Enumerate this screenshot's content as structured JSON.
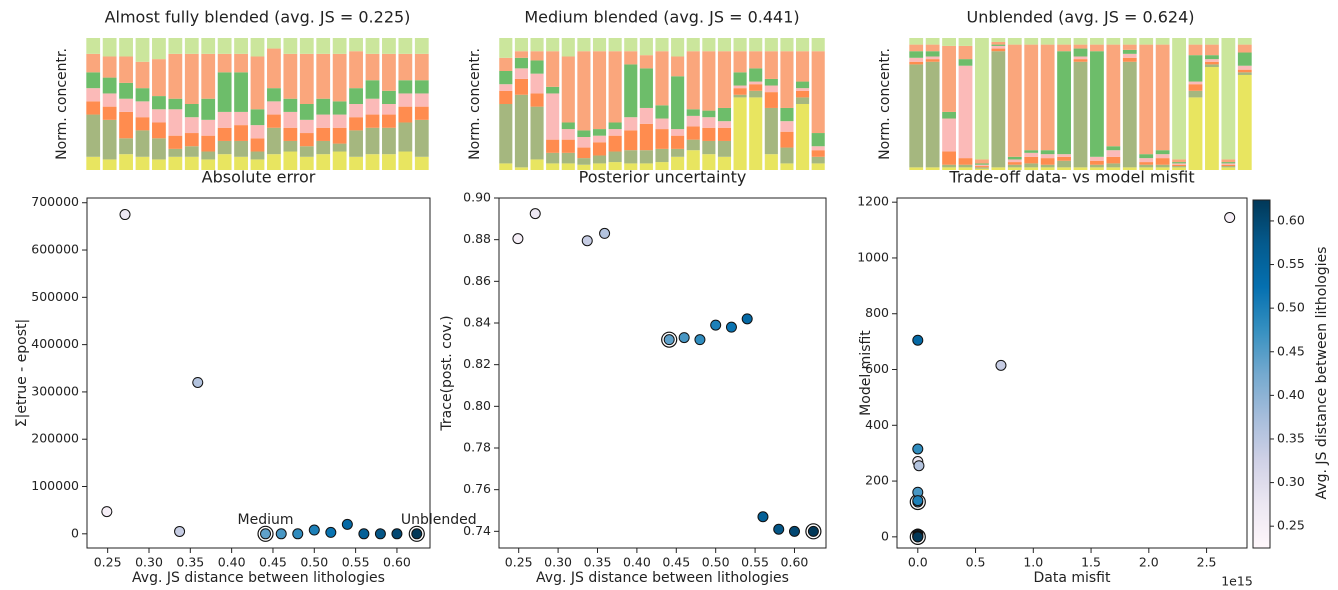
{
  "chart_data": [
    {
      "type": "bar",
      "stacked": true,
      "title": "Almost fully blended (avg. JS = 0.225)",
      "ylabel": "Norm. concentr.",
      "ylim": [
        0,
        1
      ],
      "series": [
        {
          "color": "#e8e560",
          "values": [
            0.1,
            0.08,
            0.12,
            0.1,
            0.08,
            0.1,
            0.1,
            0.08,
            0.12,
            0.1,
            0.08,
            0.12,
            0.14,
            0.1,
            0.12,
            0.14,
            0.1,
            0.12,
            0.12,
            0.14,
            0.1
          ]
        },
        {
          "color": "#a5b77f",
          "values": [
            0.32,
            0.3,
            0.12,
            0.2,
            0.16,
            0.06,
            0.08,
            0.06,
            0.1,
            0.12,
            0.06,
            0.2,
            0.08,
            0.08,
            0.1,
            0.06,
            0.2,
            0.2,
            0.2,
            0.22,
            0.28
          ]
        },
        {
          "color": "#ff8c4f",
          "values": [
            0.1,
            0.1,
            0.2,
            0.1,
            0.12,
            0.1,
            0.1,
            0.12,
            0.1,
            0.12,
            0.1,
            0.1,
            0.1,
            0.1,
            0.1,
            0.12,
            0.1,
            0.1,
            0.1,
            0.12,
            0.1
          ]
        },
        {
          "color": "#fbbab8",
          "values": [
            0.1,
            0.1,
            0.1,
            0.12,
            0.1,
            0.2,
            0.12,
            0.12,
            0.12,
            0.1,
            0.1,
            0.1,
            0.12,
            0.1,
            0.1,
            0.1,
            0.1,
            0.12,
            0.08,
            0.1,
            0.1
          ]
        },
        {
          "color": "#6dbd6a",
          "values": [
            0.12,
            0.12,
            0.12,
            0.1,
            0.1,
            0.08,
            0.1,
            0.16,
            0.3,
            0.3,
            0.12,
            0.1,
            0.1,
            0.12,
            0.12,
            0.1,
            0.12,
            0.14,
            0.1,
            0.1,
            0.1
          ]
        },
        {
          "color": "#faa67c",
          "values": [
            0.14,
            0.16,
            0.2,
            0.2,
            0.28,
            0.34,
            0.38,
            0.34,
            0.14,
            0.14,
            0.4,
            0.3,
            0.34,
            0.38,
            0.34,
            0.36,
            0.28,
            0.2,
            0.28,
            0.2,
            0.2
          ]
        },
        {
          "color": "#cbe69c",
          "values": [
            0.12,
            0.14,
            0.14,
            0.18,
            0.16,
            0.12,
            0.12,
            0.12,
            0.12,
            0.12,
            0.14,
            0.08,
            0.12,
            0.12,
            0.12,
            0.12,
            0.1,
            0.12,
            0.12,
            0.12,
            0.12
          ]
        }
      ]
    },
    {
      "type": "bar",
      "stacked": true,
      "title": "Medium blended (avg. JS = 0.441)",
      "ylabel": "Norm. concentr.",
      "ylim": [
        0,
        1
      ],
      "series": [
        {
          "color": "#e8e560",
          "values": [
            0.05,
            0.02,
            0.08,
            0.05,
            0.05,
            0.04,
            0.05,
            0.06,
            0.05,
            0.05,
            0.06,
            0.1,
            0.15,
            0.12,
            0.1,
            0.55,
            0.55,
            0.12,
            0.05,
            0.5,
            0.05
          ]
        },
        {
          "color": "#a5b77f",
          "values": [
            0.45,
            0.55,
            0.4,
            0.08,
            0.08,
            0.05,
            0.06,
            0.08,
            0.1,
            0.1,
            0.1,
            0.06,
            0.08,
            0.1,
            0.12,
            0.02,
            0.05,
            0.35,
            0.12,
            0.05,
            0.05
          ]
        },
        {
          "color": "#ff8c4f",
          "values": [
            0.1,
            0.12,
            0.1,
            0.1,
            0.1,
            0.08,
            0.1,
            0.12,
            0.15,
            0.2,
            0.15,
            0.1,
            0.1,
            0.1,
            0.1,
            0.05,
            0.05,
            0.12,
            0.12,
            0.05,
            0.05
          ]
        },
        {
          "color": "#fbbab8",
          "values": [
            0.05,
            0.08,
            0.15,
            0.35,
            0.08,
            0.08,
            0.05,
            0.05,
            0.1,
            0.12,
            0.08,
            0.05,
            0.08,
            0.08,
            0.05,
            0.02,
            0.02,
            0.05,
            0.08,
            0.02,
            0.03
          ]
        },
        {
          "color": "#6dbd6a",
          "values": [
            0.1,
            0.08,
            0.1,
            0.05,
            0.05,
            0.05,
            0.05,
            0.05,
            0.4,
            0.3,
            0.1,
            0.4,
            0.05,
            0.05,
            0.1,
            0.1,
            0.1,
            0.05,
            0.1,
            0.05,
            0.1
          ]
        },
        {
          "color": "#faa67c",
          "values": [
            0.1,
            0.05,
            0.07,
            0.27,
            0.5,
            0.6,
            0.59,
            0.54,
            0.1,
            0.1,
            0.41,
            0.15,
            0.44,
            0.45,
            0.43,
            0.16,
            0.13,
            0.21,
            0.43,
            0.23,
            0.62
          ]
        },
        {
          "color": "#cbe69c",
          "values": [
            0.15,
            0.1,
            0.1,
            0.1,
            0.14,
            0.1,
            0.1,
            0.1,
            0.1,
            0.13,
            0.1,
            0.14,
            0.1,
            0.1,
            0.1,
            0.1,
            0.1,
            0.1,
            0.1,
            0.1,
            0.1
          ]
        }
      ]
    },
    {
      "type": "bar",
      "stacked": true,
      "title": "Unblended (avg. JS = 0.624)",
      "ylabel": "Norm. concentr.",
      "ylim": [
        0,
        1
      ],
      "series": [
        {
          "color": "#e8e560",
          "values": [
            0.02,
            0.02,
            0.02,
            0.02,
            0.01,
            0.02,
            0.02,
            0.02,
            0.02,
            0.02,
            0.02,
            0.02,
            0.02,
            0.02,
            0.02,
            0.02,
            0.02,
            0.55,
            0.78,
            0.02,
            0.72
          ]
        },
        {
          "color": "#a5b77f",
          "values": [
            0.78,
            0.8,
            0.02,
            0.02,
            0.01,
            0.88,
            0.02,
            0.03,
            0.02,
            0.05,
            0.8,
            0.02,
            0.03,
            0.8,
            0.02,
            0.02,
            0.01,
            0.05,
            0.02,
            0.01,
            0.02
          ]
        },
        {
          "color": "#ff8c4f",
          "values": [
            0.02,
            0.02,
            0.1,
            0.05,
            0.01,
            0.02,
            0.02,
            0.05,
            0.05,
            0.03,
            0.02,
            0.03,
            0.05,
            0.03,
            0.02,
            0.05,
            0.01,
            0.05,
            0.02,
            0.01,
            0.02
          ]
        },
        {
          "color": "#fbbab8",
          "values": [
            0.03,
            0.02,
            0.25,
            0.7,
            0.01,
            0.02,
            0.02,
            0.03,
            0.03,
            0.02,
            0.02,
            0.03,
            0.05,
            0.03,
            0.03,
            0.03,
            0.01,
            0.02,
            0.02,
            0.01,
            0.03
          ]
        },
        {
          "color": "#6dbd6a",
          "values": [
            0.05,
            0.04,
            0.05,
            0.05,
            0.01,
            0.01,
            0.02,
            0.02,
            0.03,
            0.78,
            0.06,
            0.8,
            0.03,
            0.03,
            0.03,
            0.03,
            0.01,
            0.2,
            0.03,
            0.01,
            0.1
          ]
        },
        {
          "color": "#faa67c",
          "values": [
            0.05,
            0.05,
            0.5,
            0.1,
            0.03,
            0.02,
            0.85,
            0.8,
            0.8,
            0.05,
            0.03,
            0.05,
            0.77,
            0.04,
            0.83,
            0.8,
            0.02,
            0.08,
            0.08,
            0.02,
            0.06
          ]
        },
        {
          "color": "#cbe69c",
          "values": [
            0.05,
            0.05,
            0.06,
            0.06,
            0.92,
            0.03,
            0.05,
            0.05,
            0.05,
            0.05,
            0.05,
            0.05,
            0.05,
            0.05,
            0.05,
            0.05,
            0.92,
            0.05,
            0.05,
            0.92,
            0.05
          ]
        }
      ]
    },
    {
      "type": "scatter",
      "title": "Absolute error",
      "xlabel": "Avg. JS distance between  lithologies",
      "ylabel": "Σ|etrue - epost|",
      "x": [
        0.249,
        0.271,
        0.337,
        0.359,
        0.441,
        0.46,
        0.48,
        0.5,
        0.52,
        0.54,
        0.56,
        0.58,
        0.6,
        0.624
      ],
      "values": [
        47000,
        675000,
        5000,
        320000,
        0,
        0,
        0,
        8000,
        3000,
        20000,
        0,
        0,
        0,
        0
      ],
      "color_values": [
        0.249,
        0.271,
        0.337,
        0.359,
        0.441,
        0.46,
        0.48,
        0.5,
        0.52,
        0.54,
        0.56,
        0.58,
        0.6,
        0.624
      ],
      "highlight": [
        4,
        13
      ],
      "annotations": [
        "Medium",
        "Unblended"
      ],
      "colormap": [
        "#fff7fb",
        "#ece7f2",
        "#d0d1e6",
        "#a6bddb",
        "#74a9cf",
        "#3690c0",
        "#0570b0",
        "#045a8d",
        "#023858"
      ],
      "clim": [
        0.225,
        0.624
      ],
      "xlim": [
        0.225,
        0.64
      ],
      "xticks": [
        0.25,
        {
          "value": 0.3,
          "label": "0.30"
        },
        0.35,
        {
          "value": 0.4,
          "label": "0.40"
        },
        0.45,
        {
          "value": 0.5,
          "label": "0.50"
        },
        0.55,
        {
          "value": 0.6,
          "label": "0.60"
        }
      ],
      "ylim": [
        -30000,
        710000
      ],
      "yticks": [
        0,
        100000,
        200000,
        300000,
        400000,
        500000,
        600000,
        700000
      ]
    },
    {
      "type": "scatter",
      "title": "Posterior uncertainty",
      "xlabel": "Avg. JS distance between  lithologies",
      "ylabel": "Trace(post. cov.)",
      "x": [
        0.249,
        0.271,
        0.337,
        0.359,
        0.441,
        0.46,
        0.48,
        0.5,
        0.52,
        0.54,
        0.56,
        0.58,
        0.6,
        0.624
      ],
      "values": [
        0.8805,
        0.8925,
        0.8795,
        0.883,
        0.832,
        0.833,
        0.832,
        0.839,
        0.838,
        0.842,
        0.747,
        0.741,
        0.74,
        0.74
      ],
      "color_values": [
        0.249,
        0.271,
        0.337,
        0.359,
        0.441,
        0.46,
        0.48,
        0.5,
        0.52,
        0.54,
        0.56,
        0.58,
        0.6,
        0.624
      ],
      "highlight": [
        4,
        13
      ],
      "colormap": [
        "#fff7fb",
        "#ece7f2",
        "#d0d1e6",
        "#a6bddb",
        "#74a9cf",
        "#3690c0",
        "#0570b0",
        "#045a8d",
        "#023858"
      ],
      "clim": [
        0.225,
        0.624
      ],
      "xlim": [
        0.225,
        0.64
      ],
      "xticks": [
        0.25,
        {
          "value": 0.3,
          "label": "0.30"
        },
        0.35,
        {
          "value": 0.4,
          "label": "0.40"
        },
        0.45,
        {
          "value": 0.5,
          "label": "0.50"
        },
        0.55,
        {
          "value": 0.6,
          "label": "0.60"
        }
      ],
      "ylim": [
        0.732,
        0.9
      ],
      "yticks": [
        0.74,
        0.76,
        0.78,
        {
          "value": 0.8,
          "label": "0.80"
        },
        0.82,
        0.84,
        0.86,
        0.88,
        {
          "value": 0.9,
          "label": "0.90"
        }
      ]
    },
    {
      "type": "scatter",
      "title": "Trade-off data- vs model misfit",
      "xlabel": "Data misfit",
      "ylabel": "Model misfit",
      "x_offset_label": "1e15",
      "x": [
        2.7,
        0,
        0.72,
        0.01,
        0,
        0,
        0,
        0,
        0,
        0,
        0,
        0,
        0,
        0
      ],
      "values": [
        1145,
        270,
        615,
        255,
        125,
        160,
        315,
        130,
        10,
        705,
        5,
        0,
        2,
        0
      ],
      "color_values": [
        0.249,
        0.271,
        0.337,
        0.359,
        0.441,
        0.46,
        0.48,
        0.5,
        0.52,
        0.54,
        0.56,
        0.58,
        0.6,
        0.624
      ],
      "highlight": [
        4,
        13
      ],
      "colormap": [
        "#fff7fb",
        "#ece7f2",
        "#d0d1e6",
        "#a6bddb",
        "#74a9cf",
        "#3690c0",
        "#0570b0",
        "#045a8d",
        "#023858"
      ],
      "clim": [
        0.225,
        0.624
      ],
      "xlim": [
        -0.18,
        2.85
      ],
      "xticks": [
        {
          "value": 0,
          "label": "0.0"
        },
        0.5,
        {
          "value": 1,
          "label": "1.0"
        },
        1.5,
        {
          "value": 2,
          "label": "2.0"
        },
        2.5
      ],
      "ylim": [
        -40,
        1215
      ],
      "yticks": [
        0,
        200,
        400,
        600,
        800,
        1000,
        1200
      ],
      "colorbar": {
        "label": "Avg. JS distance between  lithologies",
        "ticks": [
          0.25,
          {
            "value": 0.3,
            "label": "0.30"
          },
          0.35,
          {
            "value": 0.4,
            "label": "0.40"
          },
          0.45,
          {
            "value": 0.5,
            "label": "0.50"
          },
          0.55,
          {
            "value": 0.6,
            "label": "0.60"
          }
        ]
      }
    }
  ]
}
